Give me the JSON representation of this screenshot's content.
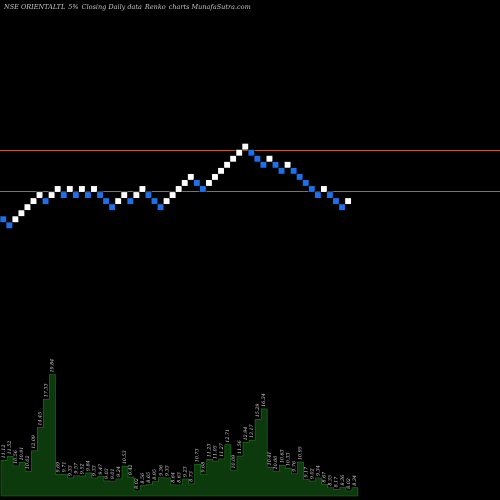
{
  "header": {
    "symbol": "NSE ORIENTALTL",
    "brick": "5%",
    "caption": "Closing Daily data",
    "chart_kind": "Renko",
    "source": "charts MunafaSutra.com"
  },
  "colors": {
    "background": "#000000",
    "up_brick": "#ffffff",
    "down_brick": "#1f6fe8",
    "brick_edge": "#000000",
    "line": "#b8641e",
    "volume_fill": "#0c3a0c",
    "volume_edge": "#1e7a1e"
  },
  "chart_data": {
    "type": "renko",
    "bricks": [
      {
        "level": 0,
        "dir": "down"
      },
      {
        "level": -1,
        "dir": "down"
      },
      {
        "level": 0,
        "dir": "up"
      },
      {
        "level": 1,
        "dir": "up"
      },
      {
        "level": 2,
        "dir": "up"
      },
      {
        "level": 3,
        "dir": "up"
      },
      {
        "level": 4,
        "dir": "up"
      },
      {
        "level": 3,
        "dir": "down"
      },
      {
        "level": 4,
        "dir": "up"
      },
      {
        "level": 5,
        "dir": "up"
      },
      {
        "level": 4,
        "dir": "down"
      },
      {
        "level": 5,
        "dir": "up"
      },
      {
        "level": 4,
        "dir": "down"
      },
      {
        "level": 5,
        "dir": "up"
      },
      {
        "level": 4,
        "dir": "down"
      },
      {
        "level": 5,
        "dir": "up"
      },
      {
        "level": 4,
        "dir": "down"
      },
      {
        "level": 3,
        "dir": "down"
      },
      {
        "level": 2,
        "dir": "down"
      },
      {
        "level": 3,
        "dir": "up"
      },
      {
        "level": 4,
        "dir": "up"
      },
      {
        "level": 3,
        "dir": "down"
      },
      {
        "level": 4,
        "dir": "up"
      },
      {
        "level": 5,
        "dir": "up"
      },
      {
        "level": 4,
        "dir": "down"
      },
      {
        "level": 3,
        "dir": "down"
      },
      {
        "level": 2,
        "dir": "down"
      },
      {
        "level": 3,
        "dir": "up"
      },
      {
        "level": 4,
        "dir": "up"
      },
      {
        "level": 5,
        "dir": "up"
      },
      {
        "level": 6,
        "dir": "up"
      },
      {
        "level": 7,
        "dir": "up"
      },
      {
        "level": 6,
        "dir": "down"
      },
      {
        "level": 5,
        "dir": "down"
      },
      {
        "level": 6,
        "dir": "up"
      },
      {
        "level": 7,
        "dir": "up"
      },
      {
        "level": 8,
        "dir": "up"
      },
      {
        "level": 9,
        "dir": "up"
      },
      {
        "level": 10,
        "dir": "up"
      },
      {
        "level": 11,
        "dir": "up"
      },
      {
        "level": 12,
        "dir": "up"
      },
      {
        "level": 11,
        "dir": "down"
      },
      {
        "level": 10,
        "dir": "down"
      },
      {
        "level": 9,
        "dir": "down"
      },
      {
        "level": 10,
        "dir": "up"
      },
      {
        "level": 9,
        "dir": "down"
      },
      {
        "level": 8,
        "dir": "down"
      },
      {
        "level": 9,
        "dir": "up"
      },
      {
        "level": 8,
        "dir": "down"
      },
      {
        "level": 7,
        "dir": "down"
      },
      {
        "level": 6,
        "dir": "down"
      },
      {
        "level": 5,
        "dir": "down"
      },
      {
        "level": 4,
        "dir": "down"
      },
      {
        "level": 5,
        "dir": "up"
      },
      {
        "level": 4,
        "dir": "down"
      },
      {
        "level": 3,
        "dir": "down"
      },
      {
        "level": 2,
        "dir": "down"
      },
      {
        "level": 3,
        "dir": "up"
      }
    ],
    "price_lines": [
      "upper",
      "lower"
    ],
    "volume_labels": [
      "11.12",
      "11.52",
      "10.56",
      "10.91",
      "10.02",
      "12.09",
      "14.45",
      "17.33",
      "19.84",
      "9.69",
      "9.71",
      "9.33",
      "9.57",
      "9.52",
      "9.84",
      "9.33",
      "9.47",
      "9.03",
      "9.01",
      "9.24",
      "10.53",
      "9.42",
      "8.02",
      "8.56",
      "8.65",
      "8.95",
      "9.36",
      "9.33",
      "8.64",
      "8.63",
      "9.23",
      "8.73",
      "10.73",
      "9.68",
      "11.23",
      "11.05",
      "11.27",
      "12.71",
      "10.09",
      "11.56",
      "12.94",
      "13.17",
      "15.29",
      "16.34",
      "10.41",
      "10.00",
      "10.63",
      "10.33",
      "9.76",
      "10.95",
      "9.17",
      "9.02",
      "9.34",
      "8.67",
      "8.35",
      "8.17",
      "8.36",
      "8.02",
      "8.34"
    ]
  }
}
